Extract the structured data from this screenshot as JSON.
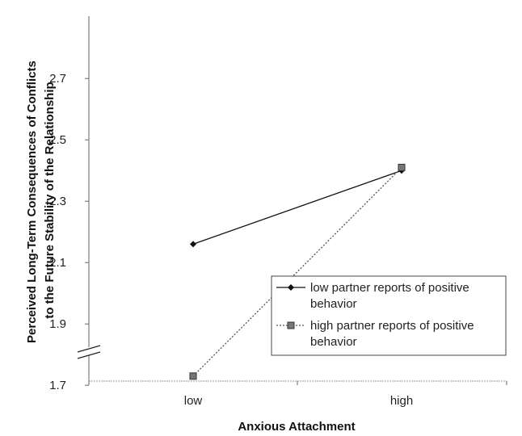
{
  "chart_data": {
    "type": "line",
    "title": "",
    "xlabel": "Anxious Attachment",
    "ylabel_lines": [
      "Perceived Long-Term Consequences of Conflicts",
      "to the Future Stability of the Relationship"
    ],
    "categories": [
      "low",
      "high"
    ],
    "ylim": [
      1.6,
      2.7
    ],
    "y_ticks": [
      "2.7",
      "2.5",
      "2.3",
      "2.1",
      "1.9",
      "1.7"
    ],
    "y_axis_break": true,
    "grid": false,
    "legend_position": "bottom-right",
    "series": [
      {
        "name_lines": [
          "low partner reports of positive",
          "behavior"
        ],
        "values": [
          2.16,
          2.4
        ],
        "line_style": "solid",
        "marker": "diamond",
        "color": "#111111"
      },
      {
        "name_lines": [
          "high partner reports of positive",
          "behavior"
        ],
        "values": [
          1.73,
          2.41
        ],
        "line_style": "dotted",
        "marker": "square",
        "color": "#555555"
      }
    ]
  }
}
